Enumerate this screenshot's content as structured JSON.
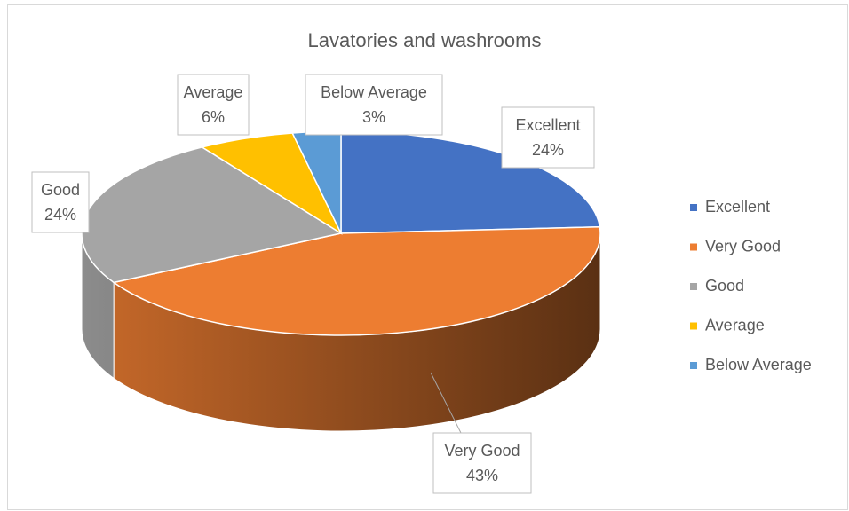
{
  "chart_data": {
    "type": "pie",
    "title": "Lavatories and washrooms",
    "categories": [
      "Excellent",
      "Very Good",
      "Good",
      "Average",
      "Below Average"
    ],
    "values": [
      24,
      43,
      24,
      6,
      3
    ],
    "value_labels": [
      "24%",
      "43%",
      "24%",
      "6%",
      "3%"
    ],
    "colors": [
      "#4472c4",
      "#ed7d31",
      "#a5a5a5",
      "#ffc000",
      "#5b9bd5"
    ],
    "legend": "right"
  }
}
